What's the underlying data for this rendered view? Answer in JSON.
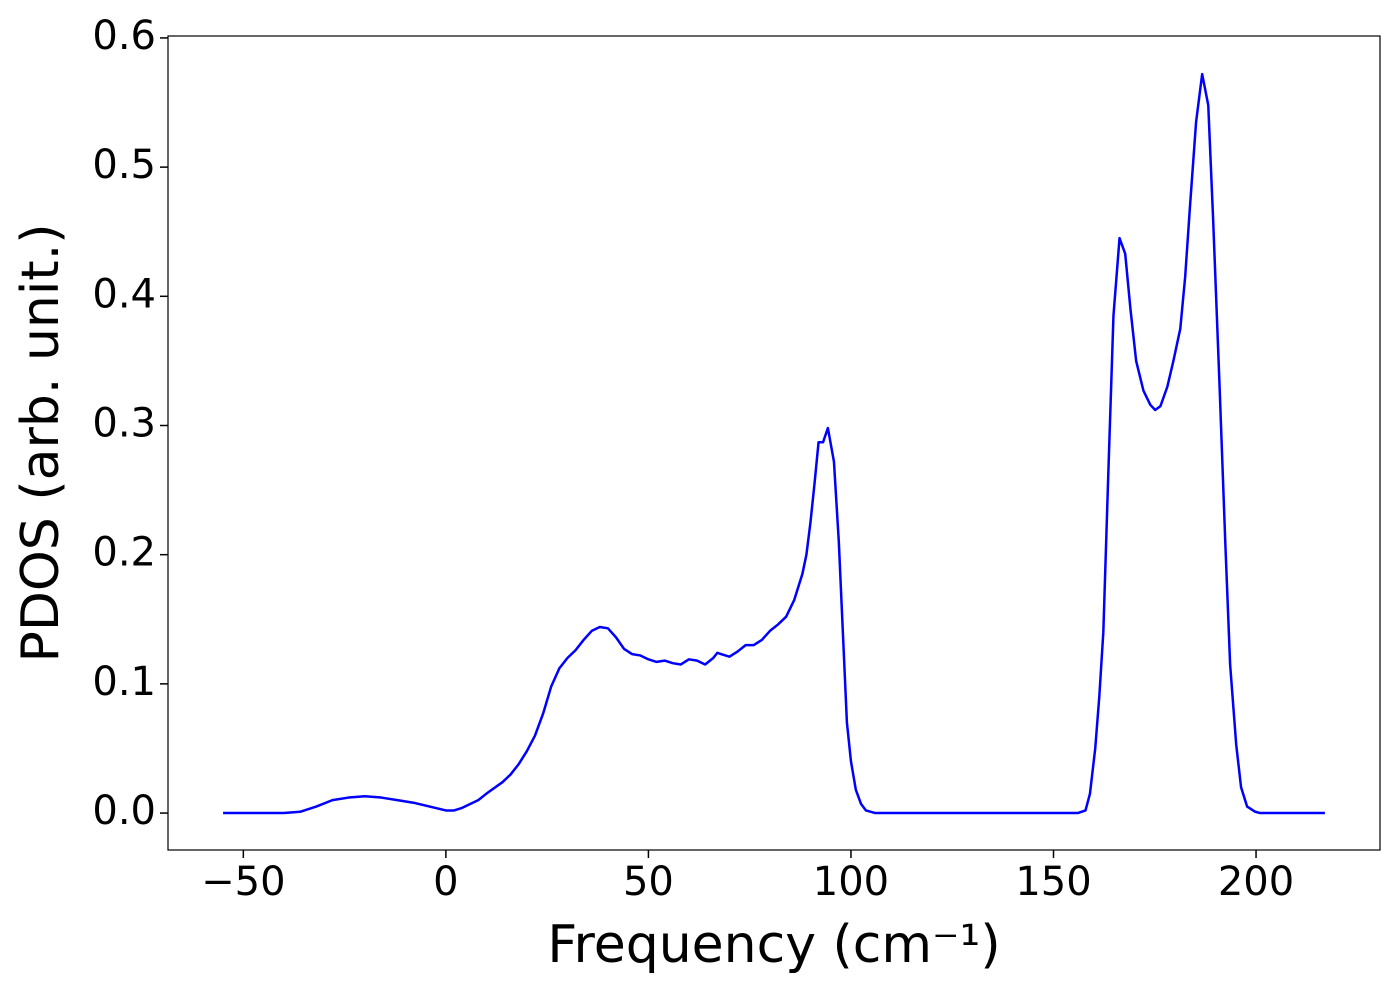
{
  "chart_data": {
    "type": "line",
    "xlabel": "Frequency (cm⁻¹)",
    "ylabel": "PDOS (arb. unit.)",
    "x": [
      -55,
      -40,
      -36,
      -32,
      -28,
      -24,
      -20,
      -16,
      -12,
      -8,
      -4,
      0,
      2,
      4,
      6,
      8,
      10,
      14,
      16,
      18,
      20,
      22,
      24,
      26,
      28,
      30,
      32,
      34,
      36,
      38,
      40,
      42,
      44,
      46,
      48,
      50,
      52,
      54,
      56,
      58,
      60,
      62,
      64,
      66,
      67,
      68,
      70,
      72,
      74,
      76,
      78,
      80,
      82,
      84,
      86,
      88,
      89,
      90,
      91,
      92,
      93.1,
      94.3,
      95.8,
      97,
      98,
      99,
      100,
      101.2,
      102.5,
      103.7,
      106,
      156,
      157.9,
      159,
      160.3,
      161.3,
      162.3,
      163.5,
      164.8,
      166.3,
      167.7,
      169,
      170.4,
      172.2,
      173.9,
      175.1,
      176.4,
      178.1,
      179.6,
      181.3,
      182.5,
      183.7,
      185.2,
      186.7,
      188.2,
      189.4,
      191,
      192.4,
      193.6,
      195.1,
      196.3,
      197.8,
      199.8,
      201,
      217
    ],
    "values": [
      0,
      0,
      0.001,
      0.005,
      0.01,
      0.012,
      0.013,
      0.012,
      0.01,
      0.008,
      0.005,
      0.002,
      0.002,
      0.004,
      0.007,
      0.01,
      0.015,
      0.024,
      0.03,
      0.038,
      0.048,
      0.06,
      0.077,
      0.098,
      0.112,
      0.12,
      0.126,
      0.134,
      0.141,
      0.144,
      0.143,
      0.136,
      0.127,
      0.123,
      0.122,
      0.119,
      0.117,
      0.118,
      0.116,
      0.115,
      0.119,
      0.118,
      0.115,
      0.12,
      0.124,
      0.123,
      0.121,
      0.125,
      0.13,
      0.13,
      0.134,
      0.141,
      0.146,
      0.152,
      0.165,
      0.185,
      0.2,
      0.225,
      0.255,
      0.287,
      0.287,
      0.298,
      0.272,
      0.21,
      0.14,
      0.07,
      0.04,
      0.018,
      0.007,
      0.002,
      0,
      0,
      0.002,
      0.015,
      0.05,
      0.09,
      0.14,
      0.26,
      0.385,
      0.445,
      0.433,
      0.39,
      0.35,
      0.327,
      0.316,
      0.312,
      0.315,
      0.33,
      0.35,
      0.375,
      0.415,
      0.47,
      0.535,
      0.572,
      0.548,
      0.46,
      0.33,
      0.21,
      0.115,
      0.053,
      0.02,
      0.005,
      0.001,
      0,
      0
    ],
    "color": "#0000ff",
    "xlim": [
      -68.6,
      230.6
    ],
    "ylim": [
      -0.0286,
      0.6015
    ],
    "xticks": [
      {
        "value": -50,
        "label": "−50"
      },
      0,
      50,
      100,
      150,
      200
    ],
    "yticks": [
      {
        "value": 0,
        "label": "0.0"
      },
      0.1,
      0.2,
      0.3,
      0.4,
      0.5,
      0.6
    ]
  }
}
